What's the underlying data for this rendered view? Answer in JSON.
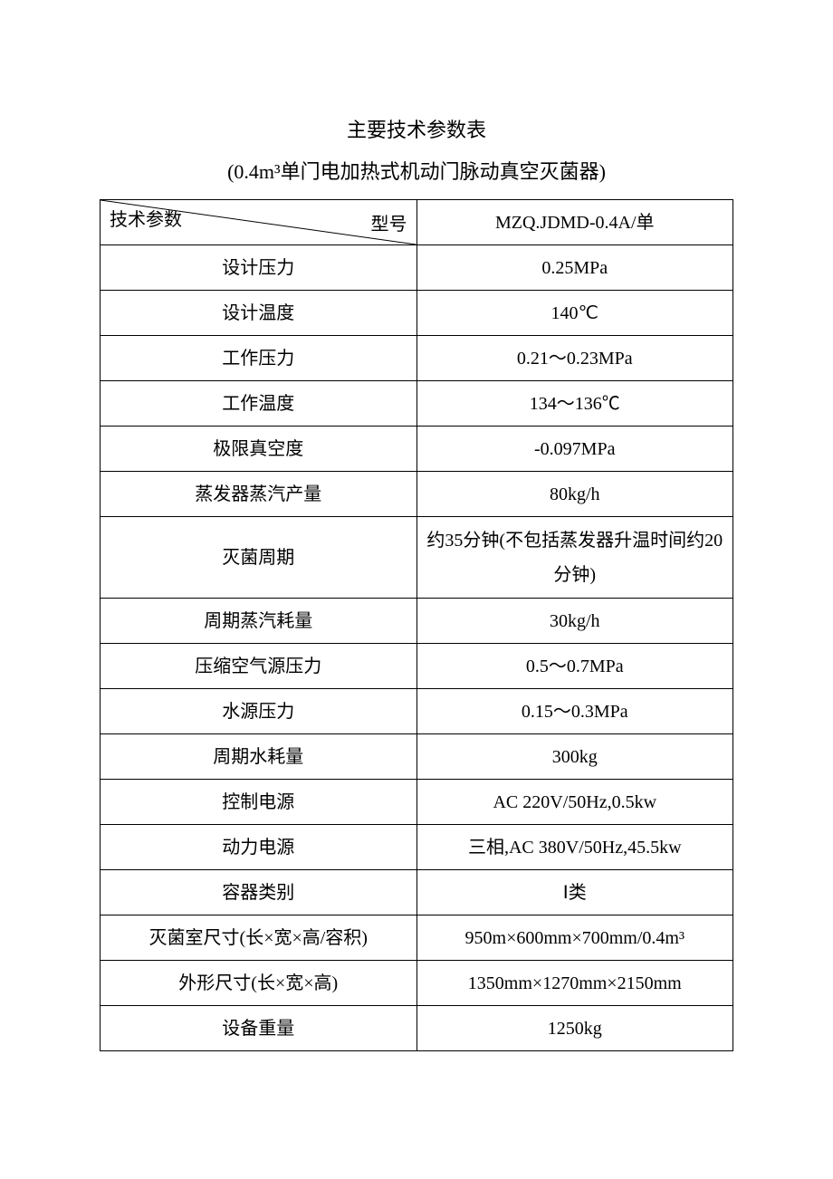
{
  "title": "主要技术参数表",
  "subtitle": "(0.4m³单门电加热式机动门脉动真空灭菌器)",
  "header": {
    "left_label": "技术参数",
    "right_label": "型号",
    "model": "MZQ.JDMD-0.4A/单"
  },
  "rows": [
    {
      "param": "设计压力",
      "value": "0.25MPa"
    },
    {
      "param": "设计温度",
      "value": "140℃"
    },
    {
      "param": "工作压力",
      "value": "0.21～0.23MPa"
    },
    {
      "param": "工作温度",
      "value": "134～136℃"
    },
    {
      "param": "极限真空度",
      "value": "-0.097MPa"
    },
    {
      "param": "蒸发器蒸汽产量",
      "value": "80kg/h"
    },
    {
      "param": "灭菌周期",
      "value": "约35分钟(不包括蒸发器升温时间约20分钟)",
      "tall": true
    },
    {
      "param": "周期蒸汽耗量",
      "value": "30kg/h"
    },
    {
      "param": "压缩空气源压力",
      "value": "0.5～0.7MPa"
    },
    {
      "param": "水源压力",
      "value": "0.15～0.3MPa"
    },
    {
      "param": "周期水耗量",
      "value": "300kg"
    },
    {
      "param": "控制电源",
      "value": "AC 220V/50Hz,0.5kw"
    },
    {
      "param": "动力电源",
      "value": "三相,AC 380V/50Hz,45.5kw"
    },
    {
      "param": "容器类别",
      "value": "Ⅰ类"
    },
    {
      "param": "灭菌室尺寸(长×宽×高/容积)",
      "value": "950m×600mm×700mm/0.4m³"
    },
    {
      "param": "外形尺寸(长×宽×高)",
      "value": "1350mm×1270mm×2150mm"
    },
    {
      "param": "设备重量",
      "value": "1250kg"
    }
  ],
  "style": {
    "page_bg": "#ffffff",
    "text_color": "#000000",
    "border_color": "#000000",
    "title_fontsize": 22,
    "cell_fontsize": 20,
    "col_widths": [
      "50%",
      "50%"
    ]
  }
}
